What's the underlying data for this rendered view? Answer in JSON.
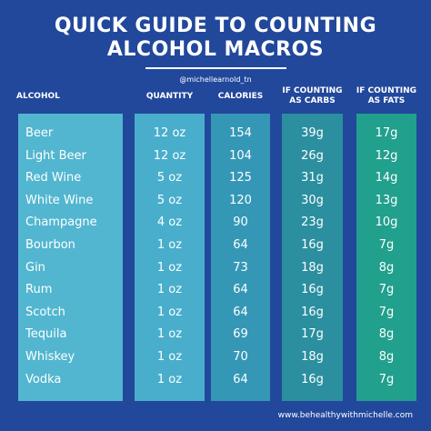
{
  "header": {
    "title": [
      "QUICK GUIDE TO COUNTING",
      "ALCOHOL MACROS"
    ],
    "handle": "@michellearnold_tn"
  },
  "table": {
    "columns": [
      [
        "ALCOHOL"
      ],
      [
        "QUANTITY"
      ],
      [
        "CALORIES"
      ],
      [
        "IF COUNTING",
        "AS CARBS"
      ],
      [
        "IF COUNTING",
        "AS FATS"
      ]
    ],
    "rows": [
      [
        "Beer",
        "12 oz",
        "154",
        "39g",
        "17g"
      ],
      [
        "Light Beer",
        "12 oz",
        "104",
        "26g",
        "12g"
      ],
      [
        "Red Wine",
        "5 oz",
        "125",
        "31g",
        "14g"
      ],
      [
        "White Wine",
        "5 oz",
        "120",
        "30g",
        "13g"
      ],
      [
        "Champagne",
        "4 oz",
        "90",
        "23g",
        "10g"
      ],
      [
        "Bourbon",
        "1 oz",
        "64",
        "16g",
        "7g"
      ],
      [
        "Gin",
        "1 oz",
        "73",
        "18g",
        "8g"
      ],
      [
        "Rum",
        "1 oz",
        "64",
        "16g",
        "7g"
      ],
      [
        "Scotch",
        "1 oz",
        "64",
        "16g",
        "7g"
      ],
      [
        "Tequila",
        "1 oz",
        "69",
        "17g",
        "8g"
      ],
      [
        "Whiskey",
        "1 oz",
        "70",
        "18g",
        "8g"
      ],
      [
        "Vodka",
        "1 oz",
        "64",
        "16g",
        "7g"
      ]
    ]
  },
  "footer": "www.behealthywithmichelle.com"
}
